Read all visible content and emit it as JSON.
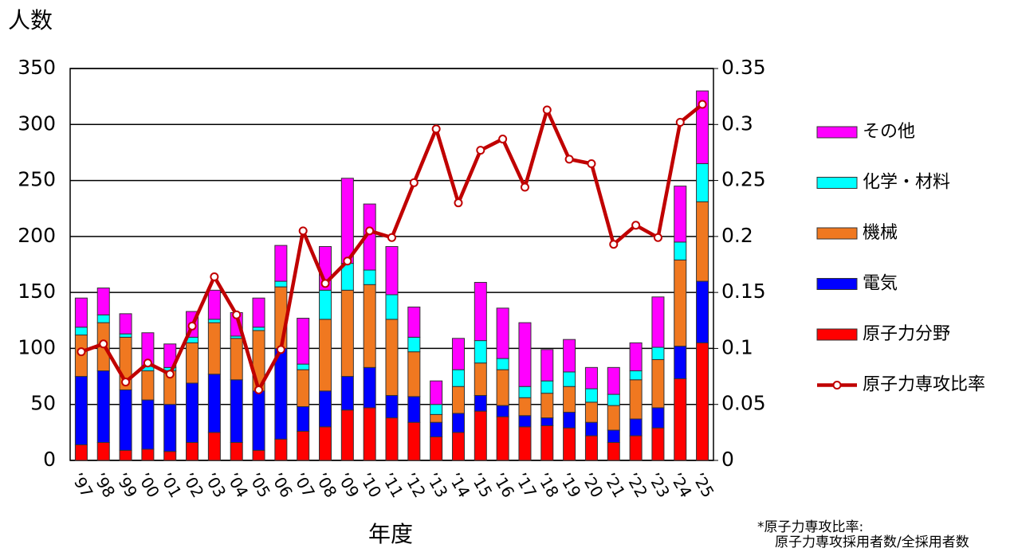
{
  "chart_data": {
    "type": "bar",
    "stacked": true,
    "y_label": "人数",
    "x_label": "年度",
    "notes": [
      "*原子力専攻比率:",
      "原子力専攻採用者数/全採用者数"
    ],
    "categories": [
      "’97",
      "’98",
      "’99",
      "’00",
      "’01",
      "’02",
      "’03",
      "’04",
      "’05",
      "’06",
      "’07",
      "’08",
      "’09",
      "’10",
      "’11",
      "’12",
      "’13",
      "’14",
      "’15",
      "’16",
      "’17",
      "’18",
      "’19",
      "’20",
      "’21",
      "’22",
      "’23",
      "’24",
      "’25"
    ],
    "ylim": [
      0,
      350
    ],
    "yticks": [
      0,
      50,
      100,
      150,
      200,
      250,
      300,
      350
    ],
    "y2lim": [
      0,
      0.35
    ],
    "y2ticks": [
      0,
      0.05,
      0.1,
      0.15,
      0.2,
      0.25,
      0.3,
      0.35
    ],
    "grid": true,
    "series": [
      {
        "name": "原子力分野",
        "color": "#ff0000",
        "values": [
          14,
          16,
          9,
          10,
          8,
          16,
          25,
          16,
          9,
          19,
          26,
          30,
          45,
          47,
          38,
          34,
          21,
          25,
          44,
          39,
          30,
          31,
          29,
          22,
          16,
          22,
          29,
          73,
          105
        ]
      },
      {
        "name": "電気",
        "color": "#0000ff",
        "values": [
          61,
          64,
          54,
          44,
          42,
          53,
          52,
          56,
          53,
          81,
          22,
          32,
          30,
          36,
          20,
          23,
          13,
          17,
          14,
          10,
          10,
          7,
          14,
          12,
          11,
          15,
          18,
          29,
          55
        ]
      },
      {
        "name": "機械",
        "color": "#f07820",
        "values": [
          37,
          43,
          47,
          26,
          30,
          36,
          46,
          37,
          54,
          55,
          33,
          64,
          77,
          74,
          68,
          40,
          7,
          24,
          29,
          32,
          16,
          22,
          23,
          18,
          22,
          35,
          43,
          77,
          71
        ]
      },
      {
        "name": "化学・材料",
        "color": "#00ffff",
        "values": [
          7,
          7,
          3,
          4,
          3,
          5,
          3,
          2,
          3,
          5,
          5,
          26,
          24,
          13,
          22,
          13,
          9,
          15,
          20,
          10,
          10,
          11,
          13,
          12,
          10,
          8,
          11,
          16,
          34
        ]
      },
      {
        "name": "その他",
        "color": "#ff00ff",
        "values": [
          26,
          24,
          18,
          30,
          21,
          23,
          26,
          21,
          26,
          32,
          41,
          39,
          76,
          59,
          43,
          27,
          21,
          28,
          52,
          45,
          57,
          28,
          29,
          19,
          24,
          25,
          45,
          50,
          65
        ]
      },
      {
        "name": "原子力専攻比率",
        "color": "#c00000",
        "type": "line",
        "axis": "y2",
        "values": [
          0.097,
          0.104,
          0.07,
          0.087,
          0.077,
          0.12,
          0.164,
          0.13,
          0.063,
          0.099,
          0.205,
          0.158,
          0.178,
          0.205,
          0.199,
          0.248,
          0.296,
          0.23,
          0.277,
          0.287,
          0.244,
          0.313,
          0.269,
          0.265,
          0.193,
          0.21,
          0.199,
          0.302,
          0.318
        ]
      }
    ]
  }
}
